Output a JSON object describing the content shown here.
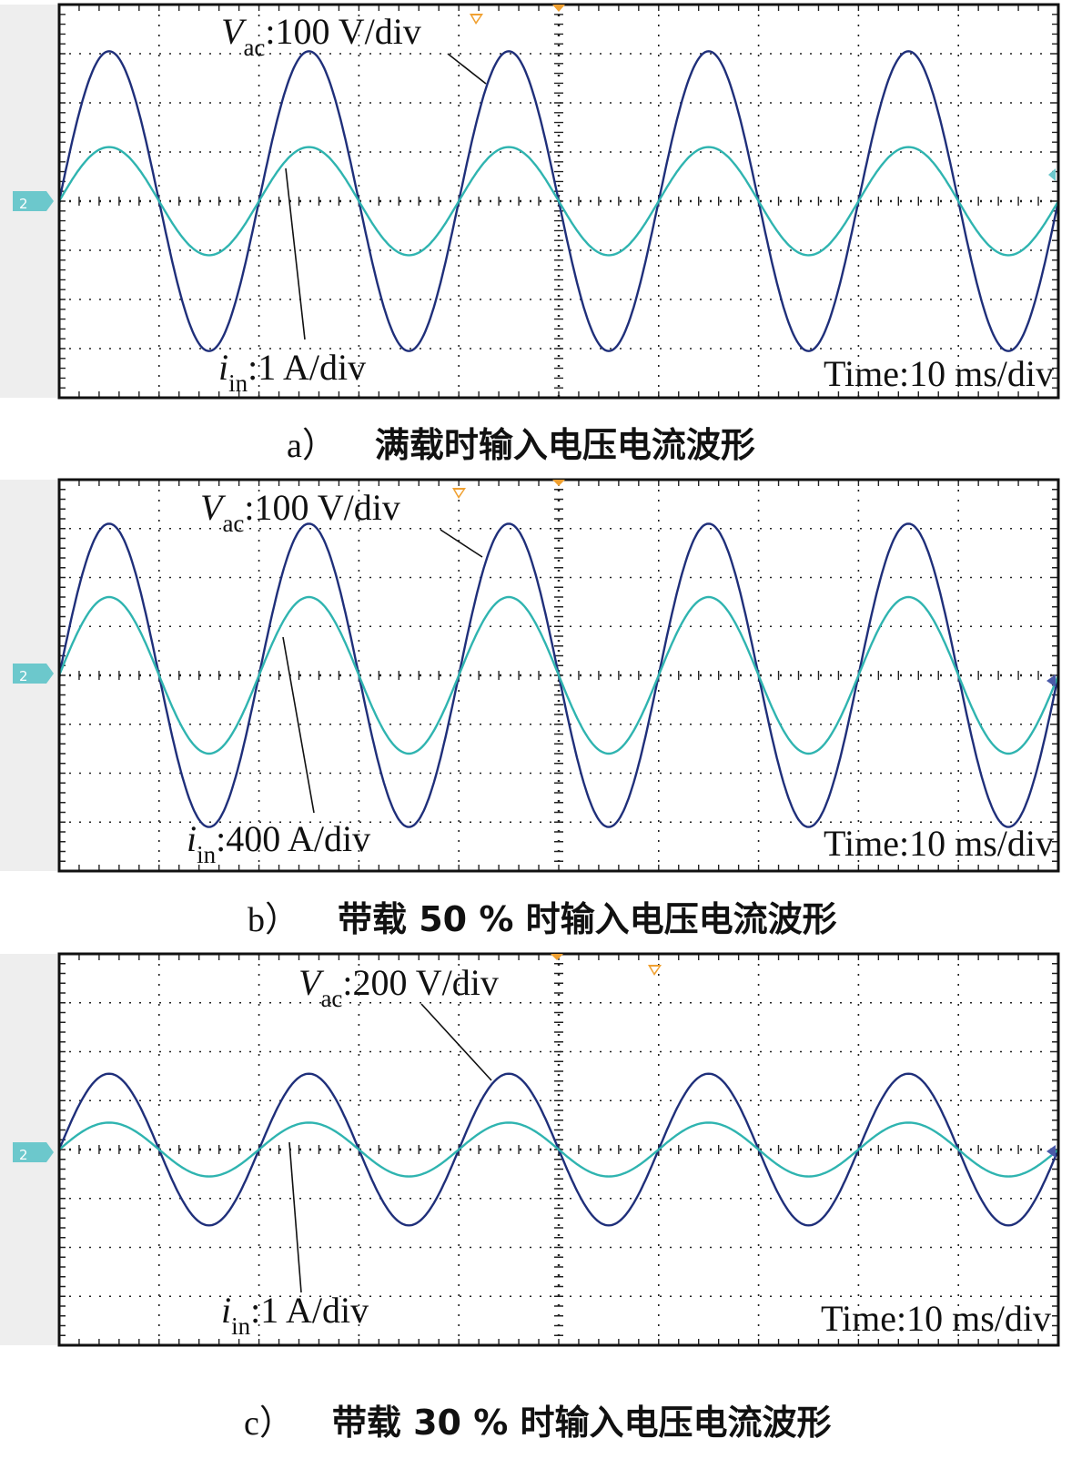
{
  "chart_data": [
    {
      "type": "line",
      "panel": "a",
      "caption_letter": "a）",
      "caption_text": "满载时输入电压电流波形",
      "channel_marker": "2",
      "time_label": "Time:10 ms/div",
      "x_unit": "div",
      "y_unit": "div",
      "xlim": [
        0,
        10
      ],
      "ylim": [
        -4,
        4
      ],
      "grid": true,
      "series": [
        {
          "name": "Vac",
          "label_sym": "V",
          "label_sub": "ac",
          "label_scale": ":100 V/div",
          "color": "#1f2f7a",
          "amplitude_div": 3.05,
          "period_div": 2.0,
          "phase_start": "zero-rising"
        },
        {
          "name": "iin",
          "label_sym": "i",
          "label_sub": "in",
          "label_scale": ":1 A/div",
          "color": "#2fb4b0",
          "amplitude_div": 1.1,
          "period_div": 2.0,
          "phase_start": "zero-rising"
        }
      ]
    },
    {
      "type": "line",
      "panel": "b",
      "caption_letter": "b）",
      "caption_text": "带载 50 % 时输入电压电流波形",
      "channel_marker": "2",
      "time_label": "Time:10 ms/div",
      "x_unit": "div",
      "y_unit": "div",
      "xlim": [
        0,
        10
      ],
      "ylim": [
        -4,
        4
      ],
      "grid": true,
      "series": [
        {
          "name": "Vac",
          "label_sym": "V",
          "label_sub": "ac",
          "label_scale": ":100 V/div",
          "color": "#1f2f7a",
          "amplitude_div": 3.1,
          "period_div": 2.0,
          "phase_start": "zero-rising"
        },
        {
          "name": "iin",
          "label_sym": "i",
          "label_sub": "in",
          "label_scale": ":400 A/div",
          "color": "#2fb4b0",
          "amplitude_div": 1.6,
          "period_div": 2.0,
          "phase_start": "zero-rising"
        }
      ]
    },
    {
      "type": "line",
      "panel": "c",
      "caption_letter": "c）",
      "caption_text": "带载 30 % 时输入电压电流波形",
      "channel_marker": "2",
      "time_label": "Time:10 ms/div",
      "x_unit": "div",
      "y_unit": "div",
      "xlim": [
        0,
        10
      ],
      "ylim": [
        -4,
        4
      ],
      "grid": true,
      "series": [
        {
          "name": "Vac",
          "label_sym": "V",
          "label_sub": "ac",
          "label_scale": ":200 V/div",
          "color": "#1f2f7a",
          "amplitude_div": 1.55,
          "period_div": 2.0,
          "phase_start": "zero-rising"
        },
        {
          "name": "iin",
          "label_sym": "i",
          "label_sub": "in",
          "label_scale": ":1 A/div",
          "color": "#2fb4b0",
          "amplitude_div": 0.55,
          "period_div": 2.0,
          "phase_start": "zero-rising"
        }
      ]
    }
  ],
  "colors": {
    "grid": "#222222",
    "frame": "#111111",
    "marker": "#6cc8cc",
    "trigger": "#f0a030"
  }
}
